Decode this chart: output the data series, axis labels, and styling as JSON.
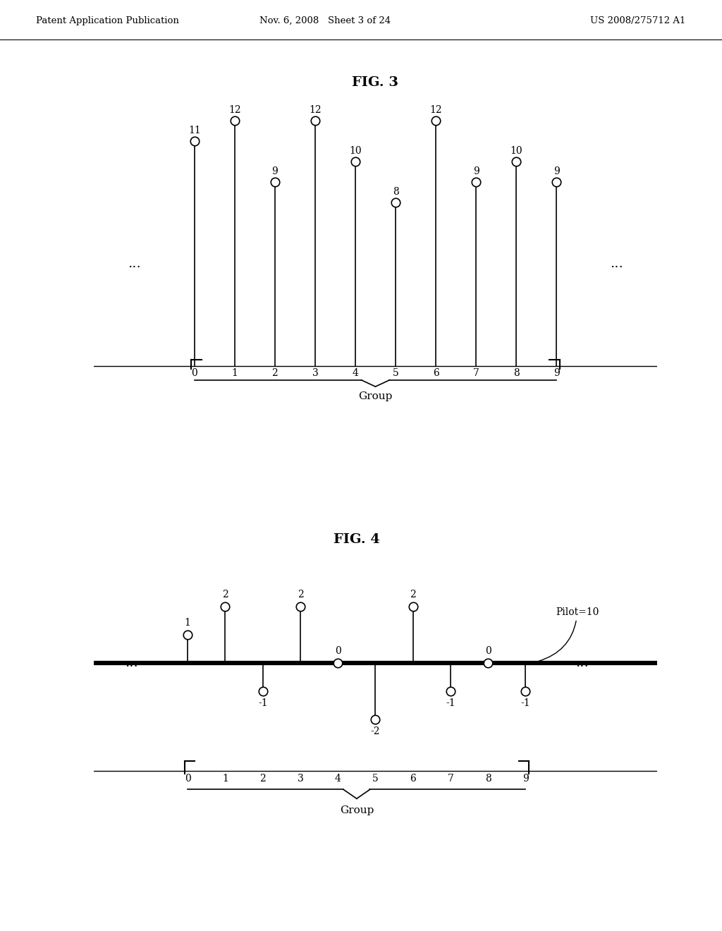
{
  "header_left": "Patent Application Publication",
  "header_mid": "Nov. 6, 2008   Sheet 3 of 24",
  "header_right": "US 2008/275712 A1",
  "fig3_title": "FIG. 3",
  "fig3_positions": [
    0,
    1,
    2,
    3,
    4,
    5,
    6,
    7,
    8,
    9
  ],
  "fig3_heights": [
    11,
    12,
    9,
    12,
    10,
    8,
    12,
    9,
    10,
    9
  ],
  "fig3_group_label": "Group",
  "fig4_title": "FIG. 4",
  "fig4_positions": [
    0,
    1,
    2,
    3,
    4,
    5,
    6,
    7,
    8,
    9
  ],
  "fig4_heights": [
    1,
    2,
    -1,
    2,
    0,
    -2,
    2,
    -1,
    0,
    -1
  ],
  "fig4_group_label": "Group",
  "fig4_pilot_label": "Pilot=10",
  "bg_color": "#ffffff",
  "line_color": "#000000"
}
